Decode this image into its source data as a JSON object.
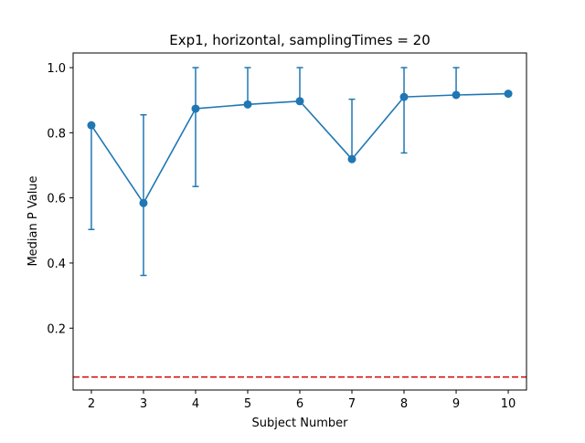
{
  "chart_data": {
    "type": "line",
    "title": "Exp1, horizontal, samplingTimes = 20",
    "xlabel": "Subject Number",
    "ylabel": "Median P Value",
    "x": [
      2,
      3,
      4,
      5,
      6,
      7,
      8,
      9,
      10
    ],
    "x_ticks": [
      "2",
      "3",
      "4",
      "5",
      "6",
      "7",
      "8",
      "9",
      "10"
    ],
    "y_ticks": [
      "0.2",
      "0.4",
      "0.6",
      "0.8",
      "1.0"
    ],
    "y_tick_values": [
      0.2,
      0.4,
      0.6,
      0.8,
      1.0
    ],
    "xlim": [
      1.65,
      10.35
    ],
    "ylim": [
      0.01,
      1.045
    ],
    "grid": false,
    "series": [
      {
        "values": [
          0.823,
          0.584,
          0.874,
          0.887,
          0.897,
          0.719,
          0.91,
          0.916,
          0.92
        ],
        "error_low": [
          0.503,
          0.362,
          0.635,
          0.887,
          0.897,
          0.719,
          0.738,
          0.916,
          0.92
        ],
        "error_high": [
          0.823,
          0.855,
          1.0,
          1.0,
          1.0,
          0.903,
          1.0,
          1.0,
          0.92
        ],
        "color": "#1f77b4",
        "marker": "circle"
      }
    ],
    "reference_lines": [
      {
        "y": 0.05,
        "color": "#d62728",
        "style": "dashed"
      }
    ]
  }
}
